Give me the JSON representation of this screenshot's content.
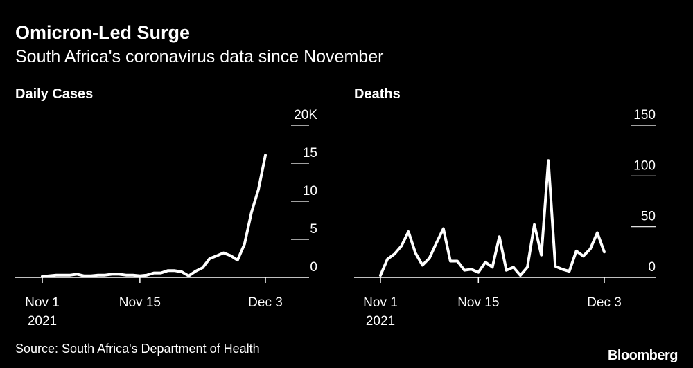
{
  "title": "Omicron-Led Surge",
  "subtitle": "South Africa's coronavirus data since November",
  "source": "Source: South Africa's Department of Health",
  "brand": "Bloomberg",
  "colors": {
    "background": "#000000",
    "line": "#ffffff",
    "text": "#ffffff"
  },
  "chart_data": [
    {
      "type": "line",
      "title": "Daily Cases",
      "xlabel": "",
      "ylabel": "",
      "x_ticks": [
        "Nov 1",
        "Nov 15",
        "Dec 3"
      ],
      "x_tick_days": [
        0,
        14,
        32
      ],
      "x_year_label": "2021",
      "y_ticks": [
        "0",
        "5",
        "10",
        "15",
        "20K"
      ],
      "y_tick_values": [
        0,
        5000,
        10000,
        15000,
        20000
      ],
      "ylim": [
        0,
        20000
      ],
      "grid": false,
      "x": [
        "Nov 1",
        "Nov 2",
        "Nov 3",
        "Nov 4",
        "Nov 5",
        "Nov 6",
        "Nov 7",
        "Nov 8",
        "Nov 9",
        "Nov 10",
        "Nov 11",
        "Nov 12",
        "Nov 13",
        "Nov 14",
        "Nov 15",
        "Nov 16",
        "Nov 17",
        "Nov 18",
        "Nov 19",
        "Nov 20",
        "Nov 21",
        "Nov 22",
        "Nov 23",
        "Nov 24",
        "Nov 25",
        "Nov 26",
        "Nov 27",
        "Nov 28",
        "Nov 29",
        "Nov 30",
        "Dec 1",
        "Dec 2",
        "Dec 3"
      ],
      "values": [
        120,
        200,
        300,
        300,
        300,
        420,
        200,
        200,
        300,
        300,
        420,
        420,
        300,
        300,
        200,
        300,
        580,
        580,
        880,
        880,
        730,
        200,
        820,
        1275,
        2465,
        2828,
        3220,
        2858,
        2273,
        4373,
        8561,
        11535,
        16055
      ]
    },
    {
      "type": "line",
      "title": "Deaths",
      "xlabel": "",
      "ylabel": "",
      "x_ticks": [
        "Nov 1",
        "Nov 15",
        "Dec 3"
      ],
      "x_tick_days": [
        0,
        14,
        32
      ],
      "x_year_label": "2021",
      "y_ticks": [
        "0",
        "50",
        "100",
        "150"
      ],
      "y_tick_values": [
        0,
        50,
        100,
        150
      ],
      "ylim": [
        0,
        150
      ],
      "grid": false,
      "x": [
        "Nov 1",
        "Nov 2",
        "Nov 3",
        "Nov 4",
        "Nov 5",
        "Nov 6",
        "Nov 7",
        "Nov 8",
        "Nov 9",
        "Nov 10",
        "Nov 11",
        "Nov 12",
        "Nov 13",
        "Nov 14",
        "Nov 15",
        "Nov 16",
        "Nov 17",
        "Nov 18",
        "Nov 19",
        "Nov 20",
        "Nov 21",
        "Nov 22",
        "Nov 23",
        "Nov 24",
        "Nov 25",
        "Nov 26",
        "Nov 27",
        "Nov 28",
        "Nov 29",
        "Nov 30",
        "Dec 1",
        "Dec 2",
        "Dec 3"
      ],
      "values": [
        2,
        18,
        23,
        31,
        45,
        24,
        12,
        19,
        34,
        48,
        16,
        16,
        7,
        8,
        5,
        15,
        10,
        40,
        7,
        10,
        2,
        10,
        52,
        22,
        115,
        11,
        8,
        6,
        26,
        21,
        28,
        44,
        25
      ]
    }
  ]
}
